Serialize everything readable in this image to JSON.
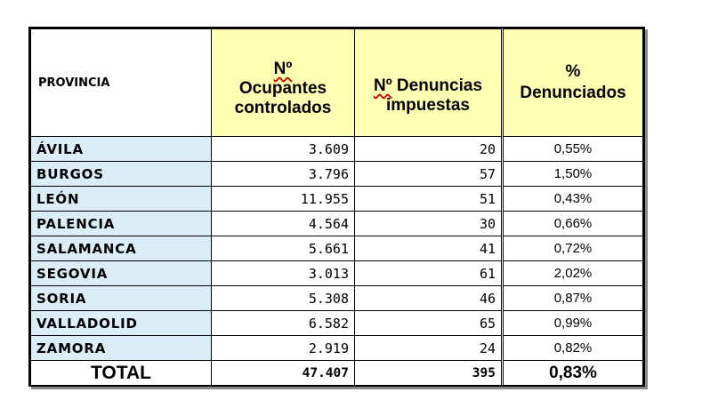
{
  "headers": {
    "provincia": "PROVINCIA",
    "ocupantes_sym": "Nº",
    "ocupantes_text": "Ocupantes controlados",
    "denuncias_sym": "Nº",
    "denuncias_text": "Denuncias impuestas",
    "pct_sym": "%",
    "pct_text": "Denunciados"
  },
  "rows": [
    {
      "provincia": "ÁVILA",
      "ocupantes": "3.609",
      "denuncias": "20",
      "pct": "0,55%"
    },
    {
      "provincia": "BURGOS",
      "ocupantes": "3.796",
      "denuncias": "57",
      "pct": "1,50%"
    },
    {
      "provincia": "LEÓN",
      "ocupantes": "11.955",
      "denuncias": "51",
      "pct": "0,43%"
    },
    {
      "provincia": "PALENCIA",
      "ocupantes": "4.564",
      "denuncias": "30",
      "pct": "0,66%"
    },
    {
      "provincia": "SALAMANCA",
      "ocupantes": "5.661",
      "denuncias": "41",
      "pct": "0,72%"
    },
    {
      "provincia": "SEGOVIA",
      "ocupantes": "3.013",
      "denuncias": "61",
      "pct": "2,02%"
    },
    {
      "provincia": "SORIA",
      "ocupantes": "5.308",
      "denuncias": "46",
      "pct": "0,87%"
    },
    {
      "provincia": "VALLADOLID",
      "ocupantes": "6.582",
      "denuncias": "65",
      "pct": "0,99%"
    },
    {
      "provincia": "ZAMORA",
      "ocupantes": "2.919",
      "denuncias": "24",
      "pct": "0,82%"
    }
  ],
  "total": {
    "label": "TOTAL",
    "ocupantes": "47.407",
    "denuncias": "395",
    "pct": "0,83%"
  },
  "colors": {
    "header_fill": "#ffffb3",
    "province_fill": "#dbeef7",
    "border": "#000000"
  }
}
